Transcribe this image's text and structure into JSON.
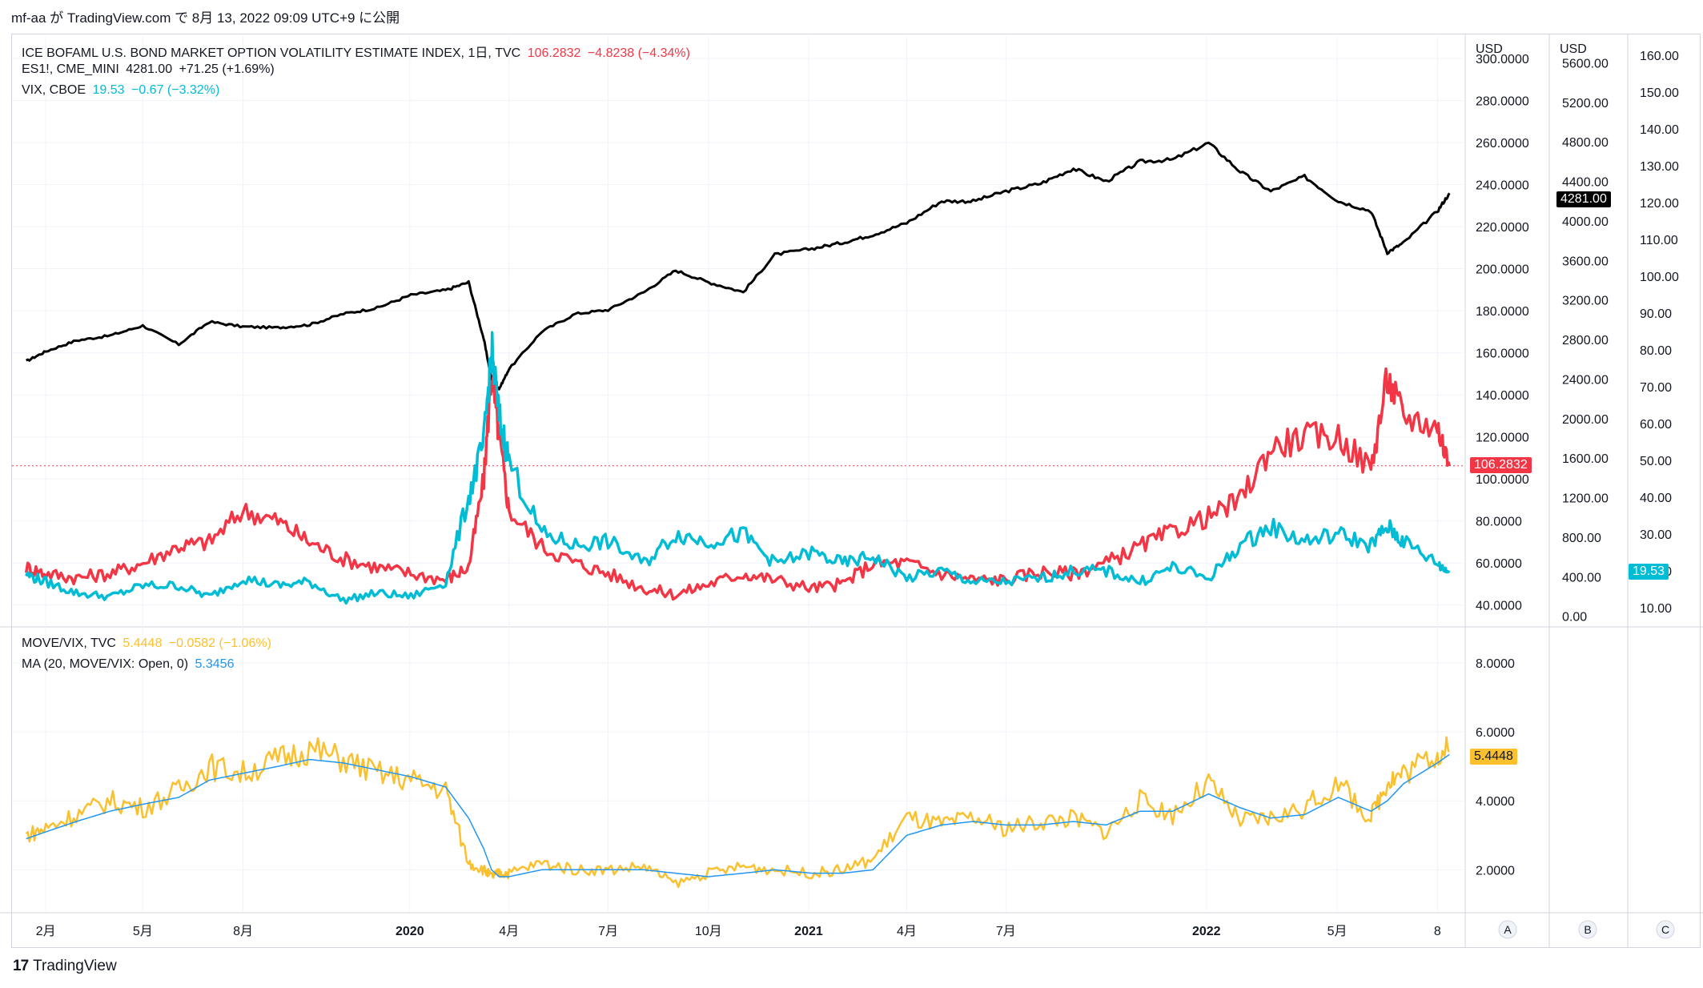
{
  "header": {
    "text": "mf-aa が TradingView.com で 8月 13, 2022 09:09 UTC+9 に公開"
  },
  "legend": {
    "move": {
      "name": "ICE BOFAML U.S. BOND MARKET OPTION VOLATILITY ESTIMATE INDEX, 1日, TVC",
      "value": "106.2832",
      "change": "−4.8238 (−4.34%)"
    },
    "es": {
      "name": "ES1!, CME_MINI",
      "value": "4281.00",
      "change": "+71.25 (+1.69%)"
    },
    "vix": {
      "name": "VIX, CBOE",
      "value": "19.53",
      "change": "−0.67 (−3.32%)"
    },
    "ratio": {
      "name": "MOVE/VIX, TVC",
      "value": "5.4448",
      "change": "−0.0582 (−1.06%)"
    },
    "ma": {
      "name": "MA (20, MOVE/VIX: Open, 0)",
      "value": "5.3456"
    }
  },
  "axes": {
    "currency_a": "USD",
    "currency_b": "USD",
    "a_ticks": [
      "300.0000",
      "280.0000",
      "260.0000",
      "240.0000",
      "220.0000",
      "200.0000",
      "180.0000",
      "160.0000",
      "140.0000",
      "120.0000",
      "100.0000",
      "80.0000",
      "60.0000",
      "40.0000"
    ],
    "b_ticks": [
      "5600.00",
      "5200.00",
      "4800.00",
      "4400.00",
      "4000.00",
      "3600.00",
      "3200.00",
      "2800.00",
      "2400.00",
      "2000.00",
      "1600.00",
      "1200.00",
      "800.00",
      "400.00",
      "0.00"
    ],
    "c_ticks": [
      "160.00",
      "150.00",
      "140.00",
      "130.00",
      "120.00",
      "110.00",
      "100.00",
      "90.00",
      "80.00",
      "70.00",
      "60.00",
      "50.00",
      "40.00",
      "30.00",
      "20.00",
      "10.00"
    ],
    "lower_ticks": [
      "8.0000",
      "6.0000",
      "4.0000",
      "2.0000"
    ],
    "time_labels": [
      "2月",
      "5月",
      "8月",
      "2020",
      "4月",
      "7月",
      "10月",
      "2021",
      "4月",
      "7月",
      "2022",
      "5月",
      "8"
    ],
    "scale_buttons": [
      "A",
      "B",
      "C"
    ]
  },
  "tags": {
    "es": "4281.00",
    "move": "106.2832",
    "vix": "19.53",
    "ratio": "5.4448"
  },
  "colors": {
    "move": "#f23645",
    "es": "#000000",
    "vix": "#00bcd4",
    "ratio": "#fbc02d",
    "ma": "#2196f3",
    "grid": "#f0f3fa"
  },
  "footer": {
    "brand": "TradingView"
  },
  "chart_data": {
    "type": "line",
    "x": [
      "2019-01-14",
      "2019-02-01",
      "2019-03-01",
      "2019-04-01",
      "2019-05-01",
      "2019-06-03",
      "2019-07-01",
      "2019-08-01",
      "2019-09-02",
      "2019-10-01",
      "2019-11-01",
      "2019-12-02",
      "2020-01-02",
      "2020-02-03",
      "2020-02-24",
      "2020-03-09",
      "2020-03-16",
      "2020-03-23",
      "2020-04-01",
      "2020-05-01",
      "2020-06-01",
      "2020-07-01",
      "2020-08-03",
      "2020-09-01",
      "2020-10-01",
      "2020-11-02",
      "2020-12-01",
      "2021-01-04",
      "2021-02-01",
      "2021-03-01",
      "2021-04-01",
      "2021-05-03",
      "2021-06-01",
      "2021-07-01",
      "2021-08-02",
      "2021-09-01",
      "2021-10-01",
      "2021-11-01",
      "2021-12-01",
      "2022-01-03",
      "2022-02-01",
      "2022-03-01",
      "2022-04-01",
      "2022-05-02",
      "2022-06-01",
      "2022-06-16",
      "2022-07-01",
      "2022-08-01",
      "2022-08-12"
    ],
    "series": [
      {
        "name": "ES1!, CME_MINI",
        "axis": "B",
        "values": [
          2580,
          2680,
          2790,
          2840,
          2940,
          2750,
          2980,
          2930,
          2920,
          2950,
          3060,
          3120,
          3250,
          3300,
          3380,
          2800,
          2400,
          2300,
          2500,
          2880,
          3060,
          3100,
          3280,
          3500,
          3380,
          3280,
          3660,
          3720,
          3780,
          3860,
          3980,
          4200,
          4200,
          4300,
          4380,
          4530,
          4400,
          4600,
          4620,
          4790,
          4500,
          4300,
          4450,
          4200,
          4100,
          3680,
          3780,
          4100,
          4281
        ]
      },
      {
        "name": "ICE BOFAML U.S. BOND MARKET OPTION VOLATILITY ESTIMATE INDEX, 1日, TVC",
        "axis": "A",
        "values": [
          58,
          55,
          53,
          55,
          60,
          68,
          70,
          85,
          80,
          70,
          62,
          58,
          55,
          52,
          58,
          100,
          150,
          120,
          85,
          68,
          60,
          55,
          48,
          45,
          50,
          55,
          52,
          48,
          50,
          60,
          60,
          55,
          52,
          52,
          56,
          55,
          60,
          68,
          75,
          82,
          90,
          115,
          120,
          120,
          105,
          148,
          130,
          125,
          106.28
        ]
      },
      {
        "name": "VIX, CBOE",
        "axis": "C",
        "values": [
          19,
          17,
          14,
          13,
          16,
          16,
          13,
          18,
          16,
          17,
          12,
          14,
          13,
          17,
          40,
          55,
          80,
          62,
          50,
          30,
          27,
          28,
          22,
          30,
          28,
          30,
          22,
          25,
          22,
          24,
          18,
          20,
          17,
          17,
          18,
          20,
          20,
          17,
          21,
          18,
          27,
          32,
          28,
          30,
          27,
          32,
          28,
          22,
          19.53
        ]
      },
      {
        "name": "MOVE/VIX, TVC",
        "axis": "lower",
        "values": [
          3.0,
          3.2,
          3.6,
          4.0,
          3.8,
          4.3,
          5.0,
          4.8,
          5.2,
          5.5,
          5.2,
          4.8,
          4.6,
          4.3,
          2.2,
          2.0,
          1.8,
          1.9,
          1.9,
          2.2,
          2.0,
          2.0,
          2.1,
          1.6,
          1.9,
          2.1,
          2.0,
          1.9,
          2.0,
          2.3,
          3.5,
          3.3,
          3.5,
          3.2,
          3.4,
          3.5,
          3.1,
          4.0,
          3.6,
          4.5,
          3.4,
          3.5,
          3.8,
          4.5,
          3.5,
          4.6,
          4.8,
          5.4,
          5.4448
        ]
      },
      {
        "name": "MA (20, MOVE/VIX: Open, 0)",
        "axis": "lower",
        "values": [
          2.9,
          3.1,
          3.4,
          3.7,
          3.9,
          4.1,
          4.6,
          4.8,
          5.0,
          5.2,
          5.1,
          4.9,
          4.7,
          4.4,
          3.5,
          2.6,
          2.0,
          1.8,
          1.8,
          2.0,
          2.0,
          2.0,
          2.0,
          1.9,
          1.8,
          1.9,
          2.0,
          1.9,
          1.9,
          2.0,
          3.0,
          3.3,
          3.4,
          3.3,
          3.3,
          3.4,
          3.3,
          3.7,
          3.7,
          4.2,
          3.8,
          3.5,
          3.6,
          4.1,
          3.7,
          4.0,
          4.5,
          5.1,
          5.3456
        ]
      }
    ],
    "axis_ranges": {
      "A": [
        30,
        305
      ],
      "B": [
        -100,
        5750
      ],
      "C": [
        5,
        162
      ],
      "lower": [
        0.8,
        9.0
      ]
    },
    "grid": true
  }
}
